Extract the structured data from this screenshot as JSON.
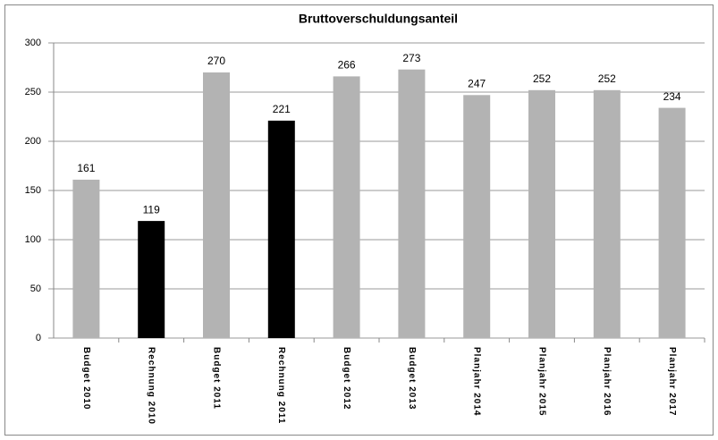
{
  "chart_data": {
    "type": "bar",
    "title": "Bruttoverschuldungsanteil",
    "categories": [
      "Budget 2010",
      "Rechnung 2010",
      "Budget 2011",
      "Rechnung 2011",
      "Budget 2012",
      "Budget 2013",
      "Planjahr 2014",
      "Planjahr 2015",
      "Planjahr 2016",
      "Planjahr 2017"
    ],
    "values": [
      161,
      119,
      270,
      221,
      266,
      273,
      247,
      252,
      252,
      234
    ],
    "colors": [
      "#b3b3b3",
      "#000000",
      "#b3b3b3",
      "#000000",
      "#b3b3b3",
      "#b3b3b3",
      "#b3b3b3",
      "#b3b3b3",
      "#b3b3b3",
      "#b3b3b3"
    ],
    "ylim": [
      0,
      300
    ],
    "yticks": [
      0,
      50,
      100,
      150,
      200,
      250,
      300
    ],
    "grid": true
  }
}
